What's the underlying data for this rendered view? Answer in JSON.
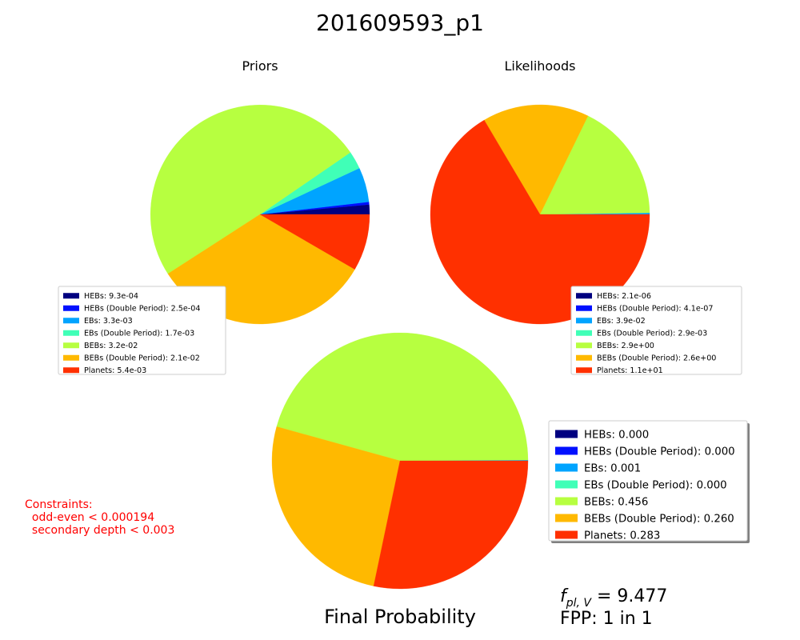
{
  "title": "201609593_p1",
  "chart_data": [
    {
      "type": "pie",
      "title": "Priors",
      "labels": [
        "HEBs",
        "HEBs (Double Period)",
        "EBs",
        "EBs (Double Period)",
        "BEBs",
        "BEBs (Double Period)",
        "Planets"
      ],
      "values": [
        0.00093,
        0.00025,
        0.0033,
        0.0017,
        0.032,
        0.021,
        0.0054
      ],
      "legend": [
        "HEBs: 9.3e-04",
        "HEBs (Double Period): 2.5e-04",
        "EBs: 3.3e-03",
        "EBs (Double Period): 1.7e-03",
        "BEBs: 3.2e-02",
        "BEBs (Double Period): 2.1e-02",
        "Planets: 5.4e-03"
      ],
      "colors": [
        "#000080",
        "#0010ff",
        "#00a4ff",
        "#40ffb7",
        "#b7ff40",
        "#ffb900",
        "#ff3000"
      ],
      "legend_position": "lower-left"
    },
    {
      "type": "pie",
      "title": "Likelihoods",
      "labels": [
        "HEBs",
        "HEBs (Double Period)",
        "EBs",
        "EBs (Double Period)",
        "BEBs",
        "BEBs (Double Period)",
        "Planets"
      ],
      "values": [
        2.1e-06,
        4.1e-07,
        0.039,
        0.0029,
        2.9,
        2.6,
        11
      ],
      "legend": [
        "HEBs: 2.1e-06",
        "HEBs (Double Period): 4.1e-07",
        "EBs: 3.9e-02",
        "EBs (Double Period): 2.9e-03",
        "BEBs: 2.9e+00",
        "BEBs (Double Period): 2.6e+00",
        "Planets: 1.1e+01"
      ],
      "colors": [
        "#000080",
        "#0010ff",
        "#00a4ff",
        "#40ffb7",
        "#b7ff40",
        "#ffb900",
        "#ff3000"
      ],
      "legend_position": "lower-right"
    },
    {
      "type": "pie",
      "title": "Final Probability",
      "labels": [
        "HEBs",
        "HEBs (Double Period)",
        "EBs",
        "EBs (Double Period)",
        "BEBs",
        "BEBs (Double Period)",
        "Planets"
      ],
      "values": [
        0.0,
        0.0,
        0.001,
        0.0,
        0.456,
        0.26,
        0.283
      ],
      "legend": [
        "HEBs: 0.000",
        "HEBs (Double Period): 0.000",
        "EBs: 0.001",
        "EBs (Double Period): 0.000",
        "BEBs: 0.456",
        "BEBs (Double Period): 0.260",
        "Planets: 0.283"
      ],
      "colors": [
        "#000080",
        "#0010ff",
        "#00a4ff",
        "#40ffb7",
        "#b7ff40",
        "#ffb900",
        "#ff3000"
      ],
      "legend_position": "right"
    }
  ],
  "annotations": {
    "constraints_lines": [
      "Constraints:",
      "  odd-even < 0.000194",
      "  secondary depth < 0.003"
    ],
    "fpl_symbol": "f",
    "fpl_subscript": "pl, V",
    "fpl_value": " = 9.477",
    "fpp": "FPP: 1 in 1"
  }
}
